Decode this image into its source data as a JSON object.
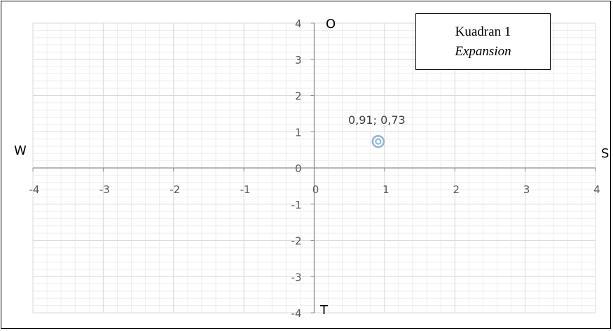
{
  "chart_data": {
    "type": "scatter",
    "x": [
      0.91
    ],
    "y": [
      0.73
    ],
    "point_label": "0,91; 0,73",
    "xlim": [
      -4,
      4
    ],
    "ylim": [
      -4,
      4
    ],
    "x_ticks": [
      "-4",
      "-3",
      "-2",
      "-1",
      "0",
      "1",
      "2",
      "3",
      "4"
    ],
    "y_ticks": [
      "4",
      "3",
      "2",
      "1",
      "0",
      "-1",
      "-2",
      "-3",
      "-4"
    ],
    "quadrant_labels": {
      "top": "O",
      "bottom": "T",
      "left": "W",
      "right": "S"
    },
    "annotation": {
      "line1": "Kuadran 1",
      "line2": "Expansion"
    },
    "grid": true,
    "minor_grid": true,
    "colors": {
      "point": "#8fb4de",
      "grid": "#d9d9d9",
      "minor_grid": "#eeeeee",
      "axis": "#8c8c8c"
    }
  }
}
